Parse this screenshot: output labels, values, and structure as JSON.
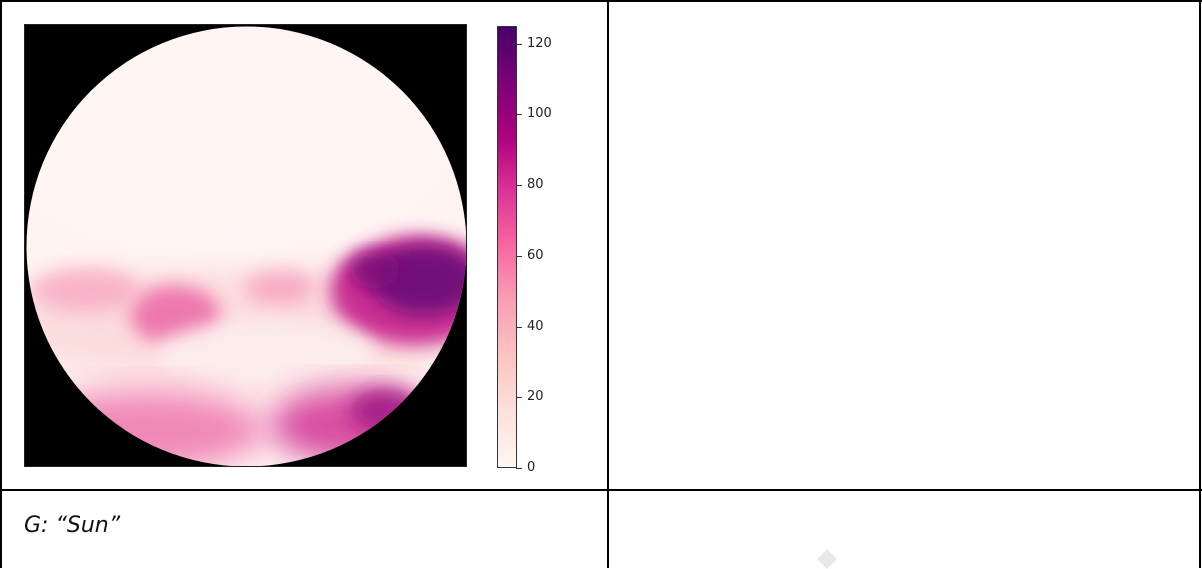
{
  "figure": {
    "colormap": "RdPu",
    "colorbar": {
      "min": 0,
      "max": 125,
      "ticks": [
        "0",
        "20",
        "40",
        "60",
        "80",
        "100",
        "120"
      ],
      "tick_values": [
        0,
        20,
        40,
        60,
        80,
        100,
        120
      ],
      "colors": [
        "#fff7f3",
        "#fde0dd",
        "#fcc5c0",
        "#fa9fb5",
        "#f768a1",
        "#dd3497",
        "#ae017e",
        "#7a0177",
        "#49006a"
      ]
    },
    "background_color": "#000000"
  },
  "caption": "G: “Sun”"
}
